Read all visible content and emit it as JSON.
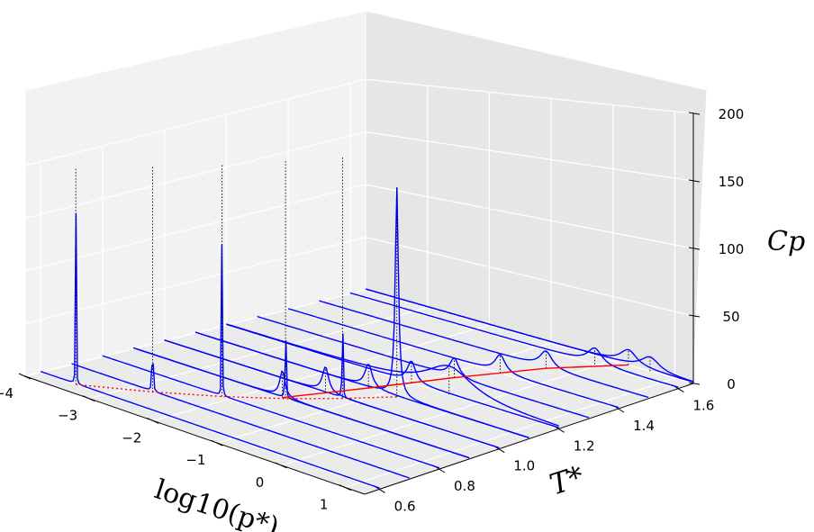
{
  "chart_data": {
    "type": "line",
    "projection": "3d",
    "xlabel": "log10(p*)",
    "ylabel": "T*",
    "zlabel": "Cp",
    "x_axis_name": "log10(p*)",
    "y_axis_name": "T*",
    "z_axis_name": "Cp",
    "xlim": [
      -4,
      1.3
    ],
    "ylim": [
      0.55,
      1.65
    ],
    "zlim": [
      0,
      200
    ],
    "x_ticks": [
      -4,
      -3,
      -2,
      -1,
      0,
      1
    ],
    "x_tick_labels": [
      "−4",
      "−3",
      "−2",
      "−1",
      "0",
      "1"
    ],
    "y_ticks": [
      0.6,
      0.8,
      1.0,
      1.2,
      1.4,
      1.6
    ],
    "y_tick_labels": [
      "0.6",
      "0.8",
      "1.0",
      "1.2",
      "1.4",
      "1.6"
    ],
    "z_ticks": [
      0,
      50,
      100,
      150,
      200
    ],
    "z_tick_labels": [
      "0",
      "50",
      "100",
      "150",
      "200"
    ],
    "grid": true,
    "series_color": "#0000ff",
    "curve_color": "#ff0000",
    "isotherms": [
      {
        "T": 0.6,
        "peak_log_p": -3.45,
        "peak_cp": 200,
        "width": 0.004
      },
      {
        "T": 0.7,
        "peak_log_p": -2.73,
        "peak_cp": 200,
        "width": 0.004
      },
      {
        "T": 0.8,
        "peak_log_p": -2.12,
        "peak_cp": 200,
        "width": 0.004
      },
      {
        "T": 0.9,
        "peak_log_p": -1.6,
        "peak_cp": 200,
        "width": 0.004
      },
      {
        "T": 1.0,
        "peak_log_p": -1.18,
        "peak_cp": 200,
        "width": 0.004
      },
      {
        "T": 1.1,
        "peak_log_p": -0.8,
        "peak_cp": 170,
        "width": 0.03
      },
      {
        "T": 1.2,
        "peak_log_p": -0.45,
        "peak_cp": 22,
        "width": 0.45
      },
      {
        "T": 0.9,
        "peak_log_p": -1.65,
        "peak_cp": 22,
        "width": 0.05
      },
      {
        "T": 1.0,
        "peak_log_p": -1.45,
        "peak_cp": 21,
        "width": 0.06
      },
      {
        "T": 1.1,
        "peak_log_p": -1.25,
        "peak_cp": 19,
        "width": 0.07
      },
      {
        "T": 1.2,
        "peak_log_p": -1.05,
        "peak_cp": 17,
        "width": 0.08
      },
      {
        "T": 1.3,
        "peak_log_p": -0.85,
        "peak_cp": 15,
        "width": 0.09
      },
      {
        "T": 1.4,
        "peak_log_p": -0.6,
        "peak_cp": 14,
        "width": 0.1
      },
      {
        "T": 1.5,
        "peak_log_p": -0.35,
        "peak_cp": 13,
        "width": 0.12
      },
      {
        "T": 1.6,
        "peak_log_p": -0.05,
        "peak_cp": 12,
        "width": 0.14
      },
      {
        "T": 1.7,
        "peak_log_p": 0.25,
        "peak_cp": 11,
        "width": 0.16
      },
      {
        "T": 1.8,
        "peak_log_p": 0.6,
        "peak_cp": 10,
        "width": 0.18
      }
    ],
    "coexistence_curve": [
      {
        "log_p": -3.45,
        "T": 0.6
      },
      {
        "log_p": -2.73,
        "T": 0.7
      },
      {
        "log_p": -2.12,
        "T": 0.8
      },
      {
        "log_p": -1.6,
        "T": 0.9
      },
      {
        "log_p": -1.18,
        "T": 1.0
      },
      {
        "log_p": -0.8,
        "T": 1.1
      }
    ],
    "widom_line": [
      {
        "log_p": -1.65,
        "T": 0.9
      },
      {
        "log_p": -1.25,
        "T": 1.1
      },
      {
        "log_p": -0.85,
        "T": 1.3
      },
      {
        "log_p": -0.35,
        "T": 1.5
      },
      {
        "log_p": 0.25,
        "T": 1.7
      }
    ]
  }
}
